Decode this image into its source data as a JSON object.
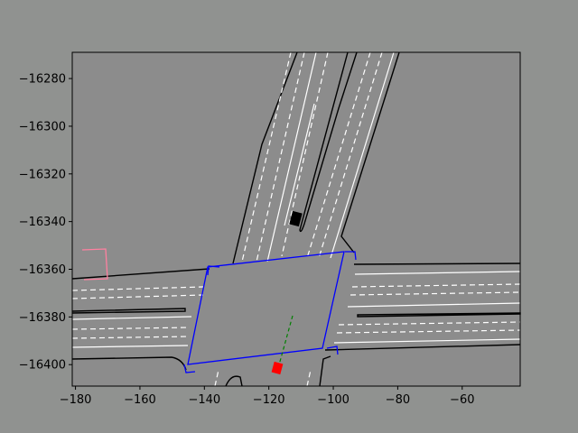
{
  "chart_data": {
    "type": "map",
    "xlim": [
      -181,
      -42
    ],
    "ylim": [
      -16409,
      -16269
    ],
    "x_ticks": [
      -180,
      -160,
      -140,
      -120,
      -100,
      -80,
      -60
    ],
    "y_ticks": [
      -16280,
      -16300,
      -16320,
      -16340,
      -16360,
      -16380,
      -16400
    ],
    "x_tick_labels": [
      "−180",
      "−160",
      "−140",
      "−120",
      "−100",
      "−80",
      "−60"
    ],
    "y_tick_labels": [
      "−16280",
      "−16300",
      "−16320",
      "−16340",
      "−16360",
      "−16380",
      "−16400"
    ],
    "colors": {
      "background": "#909290",
      "road": "#8c8c8c",
      "road_edge": "#000000",
      "lane_marking": "#ffffff",
      "intersection_outline": "#0000ff",
      "ego_vehicle": "#ff0000",
      "other_vehicle": "#000000",
      "trajectory": "#008000",
      "pedestrian_area": "#ff80a0"
    },
    "ego_vehicle": {
      "x": -117,
      "y": -16401
    },
    "other_vehicle": {
      "x": -110.5,
      "y": -16338.5
    }
  }
}
